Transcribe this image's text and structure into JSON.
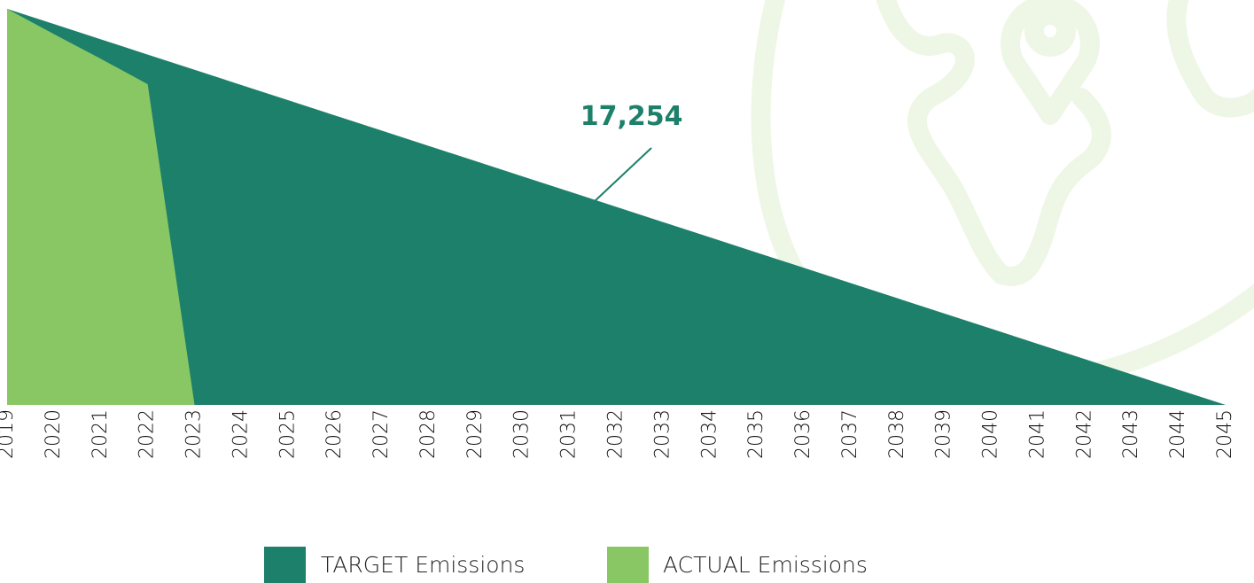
{
  "chart_data": {
    "type": "area",
    "categories": [
      "2019",
      "2020",
      "2021",
      "2022",
      "2023",
      "2024",
      "2025",
      "2026",
      "2027",
      "2028",
      "2029",
      "2030",
      "2031",
      "2032",
      "2033",
      "2034",
      "2035",
      "2036",
      "2037",
      "2038",
      "2039",
      "2040",
      "2041",
      "2042",
      "2043",
      "2044",
      "2045"
    ],
    "series": [
      {
        "name": "TARGET Emissions",
        "color": "#1d806a",
        "values": [
          32043,
          30811,
          29578,
          28346,
          27113,
          25881,
          24648,
          23416,
          22183,
          20951,
          19718,
          18486,
          17254,
          16022,
          14789,
          13557,
          12324,
          11092,
          9859,
          8627,
          7394,
          6162,
          4929,
          3697,
          2465,
          1232,
          0
        ],
        "value_labels": [
          null,
          null,
          null,
          null,
          null,
          null,
          null,
          null,
          null,
          null,
          null,
          null,
          "17,254",
          null,
          null,
          null,
          null,
          null,
          null,
          null,
          null,
          null,
          null,
          null,
          null,
          null,
          null
        ]
      },
      {
        "name": "ACTUAL Emissions",
        "color": "#88c764",
        "values": [
          32043,
          30000,
          28000,
          25950,
          0,
          null,
          null,
          null,
          null,
          null,
          null,
          null,
          null,
          null,
          null,
          null,
          null,
          null,
          null,
          null,
          null,
          null,
          null,
          null,
          null,
          null,
          null
        ]
      }
    ],
    "ylim": [
      0,
      32043
    ]
  }
}
